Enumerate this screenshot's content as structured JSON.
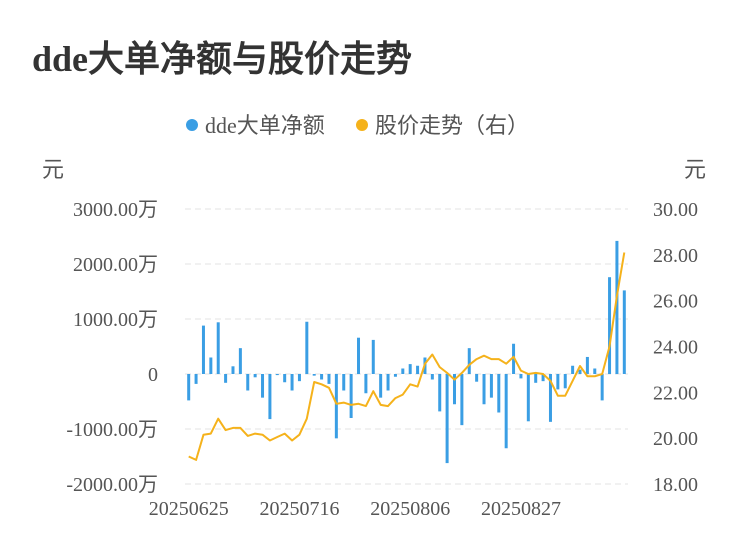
{
  "title": "dde大单净额与股价走势",
  "chart_data": {
    "type": "bar+line",
    "title": "dde大单净额与股价走势",
    "left_unit": "元",
    "right_unit": "元",
    "legend_position": "top-center",
    "grid": true,
    "colors": {
      "bar": "#3a9ee4",
      "line": "#f5b21b",
      "grid": "#e3e3e3"
    },
    "left_axis": {
      "ylim": [
        -2000,
        3000
      ],
      "ticks": [
        3000,
        2000,
        1000,
        0,
        -1000,
        -2000
      ],
      "tick_labels": [
        "3000.00万",
        "2000.00万",
        "1000.00万",
        "0",
        "-1000.00万",
        "-2000.00万"
      ]
    },
    "right_axis": {
      "ylim": [
        18,
        30
      ],
      "ticks": [
        30,
        28,
        26,
        24,
        22,
        20,
        18
      ],
      "tick_labels": [
        "30.00",
        "28.00",
        "26.00",
        "24.00",
        "22.00",
        "20.00",
        "18.00"
      ]
    },
    "x_tick_labels": [
      {
        "index": 0,
        "label": "20250625"
      },
      {
        "index": 15,
        "label": "20250716"
      },
      {
        "index": 30,
        "label": "20250806"
      },
      {
        "index": 45,
        "label": "20250827"
      }
    ],
    "series": [
      {
        "name": "dde大单净额",
        "type": "bar",
        "axis": "left",
        "values": [
          -480,
          -180,
          880,
          300,
          940,
          -160,
          140,
          470,
          -300,
          -60,
          -430,
          -820,
          -20,
          -150,
          -300,
          -130,
          950,
          -30,
          -100,
          -180,
          -1170,
          -300,
          -800,
          660,
          -350,
          620,
          -430,
          -300,
          -50,
          100,
          180,
          150,
          300,
          -100,
          -680,
          -1620,
          -550,
          -930,
          470,
          -140,
          -550,
          -430,
          -700,
          -1350,
          550,
          -80,
          -860,
          -160,
          -130,
          -870,
          -280,
          -260,
          150,
          80,
          310,
          100,
          -480,
          1760,
          2420,
          1520
        ]
      },
      {
        "name": "股价走势（右）",
        "type": "line",
        "axis": "right",
        "values": [
          19.2,
          19.05,
          20.15,
          20.2,
          20.85,
          20.35,
          20.45,
          20.45,
          20.1,
          20.2,
          20.15,
          19.9,
          20.05,
          20.2,
          19.9,
          20.15,
          20.85,
          22.45,
          22.35,
          22.2,
          21.5,
          21.55,
          21.45,
          21.5,
          21.4,
          22.05,
          21.45,
          21.4,
          21.75,
          21.9,
          22.35,
          22.25,
          23.25,
          23.65,
          23.1,
          22.85,
          22.55,
          22.85,
          23.2,
          23.45,
          23.6,
          23.45,
          23.45,
          23.25,
          23.55,
          22.95,
          22.8,
          22.85,
          22.8,
          22.5,
          21.85,
          21.85,
          22.5,
          23.15,
          22.7,
          22.7,
          22.8,
          24.0,
          26.2,
          28.1
        ]
      }
    ]
  }
}
